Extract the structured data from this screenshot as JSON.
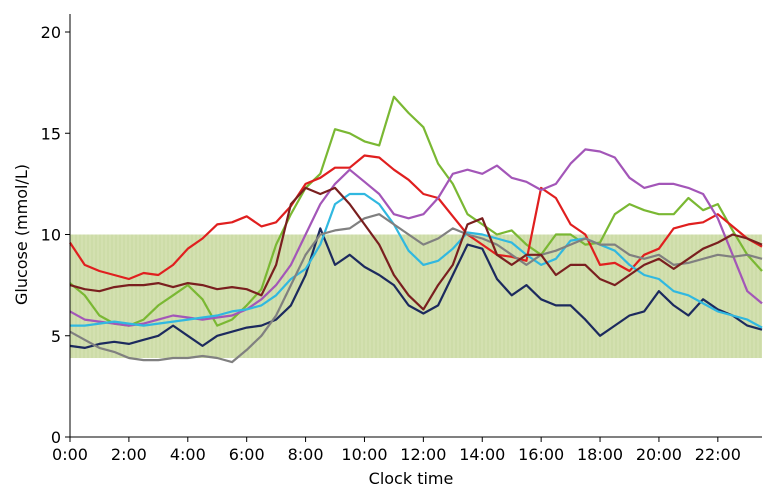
{
  "chart_data": {
    "type": "line",
    "xlabel": "Clock time",
    "ylabel": "Glucose (mmol/L)",
    "xlim": [
      0,
      23.5
    ],
    "ylim": [
      0,
      20
    ],
    "x_ticks": [
      {
        "value": 0,
        "label": "0:00"
      },
      {
        "value": 2,
        "label": "2:00"
      },
      {
        "value": 4,
        "label": "4:00"
      },
      {
        "value": 6,
        "label": "6:00"
      },
      {
        "value": 8,
        "label": "8:00"
      },
      {
        "value": 10,
        "label": "10:00"
      },
      {
        "value": 12,
        "label": "12:00"
      },
      {
        "value": 14,
        "label": "14:00"
      },
      {
        "value": 16,
        "label": "16:00"
      },
      {
        "value": 18,
        "label": "18:00"
      },
      {
        "value": 20,
        "label": "20:00"
      },
      {
        "value": 22,
        "label": "22:00"
      }
    ],
    "y_ticks": [
      {
        "value": 0,
        "label": "0"
      },
      {
        "value": 5,
        "label": "5"
      },
      {
        "value": 10,
        "label": "10"
      },
      {
        "value": 15,
        "label": "15"
      },
      {
        "value": 20,
        "label": "20"
      }
    ],
    "target_band": {
      "low": 3.9,
      "high": 10.0,
      "color": "#d3e0b0"
    },
    "series": [
      {
        "color": "#7ab833",
        "x": [
          0,
          0.5,
          1,
          1.5,
          2,
          2.5,
          3,
          3.5,
          4,
          4.5,
          5,
          5.5,
          6,
          6.5,
          7,
          7.5,
          8,
          8.5,
          9,
          9.5,
          10,
          10.5,
          11,
          11.5,
          12,
          12.5,
          13,
          13.5,
          14,
          14.5,
          15,
          15.5,
          16,
          16.5,
          17,
          17.5,
          18,
          18.5,
          19,
          19.5,
          20,
          20.5,
          21,
          21.5,
          22,
          22.5,
          23,
          23.5
        ],
        "y": [
          7.6,
          7.0,
          6.0,
          5.6,
          5.5,
          5.8,
          6.5,
          7.0,
          7.5,
          6.8,
          5.5,
          5.8,
          6.5,
          7.3,
          9.5,
          11.0,
          12.3,
          13.0,
          15.2,
          15.0,
          14.6,
          14.4,
          16.8,
          16.0,
          15.3,
          13.5,
          12.5,
          11.0,
          10.5,
          10.0,
          10.2,
          9.5,
          9.0,
          10.0,
          10.0,
          9.5,
          9.6,
          11.0,
          11.5,
          11.2,
          11.0,
          11.0,
          11.8,
          11.2,
          11.5,
          10.2,
          9.0,
          8.2
        ]
      },
      {
        "color": "#e01f1f",
        "x": [
          0,
          0.5,
          1,
          1.5,
          2,
          2.5,
          3,
          3.5,
          4,
          4.5,
          5,
          5.5,
          6,
          6.5,
          7,
          7.5,
          8,
          8.5,
          9,
          9.5,
          10,
          10.5,
          11,
          11.5,
          12,
          12.5,
          13,
          13.5,
          14,
          14.5,
          15,
          15.5,
          16,
          16.5,
          17,
          17.5,
          18,
          18.5,
          19,
          19.5,
          20,
          20.5,
          21,
          21.5,
          22,
          22.5,
          23,
          23.5
        ],
        "y": [
          9.6,
          8.5,
          8.2,
          8.0,
          7.8,
          8.1,
          8.0,
          8.5,
          9.3,
          9.8,
          10.5,
          10.6,
          10.9,
          10.4,
          10.6,
          11.4,
          12.5,
          12.8,
          13.3,
          13.3,
          13.9,
          13.8,
          13.2,
          12.7,
          12.0,
          11.8,
          10.9,
          10.0,
          9.5,
          9.0,
          8.9,
          8.7,
          12.3,
          11.8,
          10.5,
          10.0,
          8.5,
          8.6,
          8.2,
          9.0,
          9.3,
          10.3,
          10.5,
          10.6,
          11.0,
          10.4,
          9.8,
          9.4
        ]
      },
      {
        "color": "#a356b8",
        "x": [
          0,
          0.5,
          1,
          1.5,
          2,
          2.5,
          3,
          3.5,
          4,
          4.5,
          5,
          5.5,
          6,
          6.5,
          7,
          7.5,
          8,
          8.5,
          9,
          9.5,
          10,
          10.5,
          11,
          11.5,
          12,
          12.5,
          13,
          13.5,
          14,
          14.5,
          15,
          15.5,
          16,
          16.5,
          17,
          17.5,
          18,
          18.5,
          19,
          19.5,
          20,
          20.5,
          21,
          21.5,
          22,
          22.5,
          23,
          23.5
        ],
        "y": [
          6.2,
          5.8,
          5.7,
          5.6,
          5.5,
          5.6,
          5.8,
          6.0,
          5.9,
          5.8,
          5.9,
          6.0,
          6.3,
          6.8,
          7.5,
          8.5,
          10.0,
          11.5,
          12.5,
          13.2,
          12.6,
          12.0,
          11.0,
          10.8,
          11.0,
          11.8,
          13.0,
          13.2,
          13.0,
          13.4,
          12.8,
          12.6,
          12.2,
          12.5,
          13.5,
          14.2,
          14.1,
          13.8,
          12.8,
          12.3,
          12.5,
          12.5,
          12.3,
          12.0,
          10.8,
          9.0,
          7.2,
          6.6
        ]
      },
      {
        "color": "#1c2a5e",
        "x": [
          0,
          0.5,
          1,
          1.5,
          2,
          2.5,
          3,
          3.5,
          4,
          4.5,
          5,
          5.5,
          6,
          6.5,
          7,
          7.5,
          8,
          8.5,
          9,
          9.5,
          10,
          10.5,
          11,
          11.5,
          12,
          12.5,
          13,
          13.5,
          14,
          14.5,
          15,
          15.5,
          16,
          16.5,
          17,
          17.5,
          18,
          18.5,
          19,
          19.5,
          20,
          20.5,
          21,
          21.5,
          22,
          22.5,
          23,
          23.5
        ],
        "y": [
          4.5,
          4.4,
          4.6,
          4.7,
          4.6,
          4.8,
          5.0,
          5.5,
          5.0,
          4.5,
          5.0,
          5.2,
          5.4,
          5.5,
          5.8,
          6.5,
          8.0,
          10.3,
          8.5,
          9.0,
          8.4,
          8.0,
          7.5,
          6.5,
          6.1,
          6.5,
          8.0,
          9.5,
          9.3,
          7.8,
          7.0,
          7.5,
          6.8,
          6.5,
          6.5,
          5.8,
          5.0,
          5.5,
          6.0,
          6.2,
          7.2,
          6.5,
          6.0,
          6.8,
          6.3,
          6.0,
          5.5,
          5.3
        ]
      },
      {
        "color": "#30b8e0",
        "x": [
          0,
          0.5,
          1,
          1.5,
          2,
          2.5,
          3,
          3.5,
          4,
          4.5,
          5,
          5.5,
          6,
          6.5,
          7,
          7.5,
          8,
          8.5,
          9,
          9.5,
          10,
          10.5,
          11,
          11.5,
          12,
          12.5,
          13,
          13.5,
          14,
          14.5,
          15,
          15.5,
          16,
          16.5,
          17,
          17.5,
          18,
          18.5,
          19,
          19.5,
          20,
          20.5,
          21,
          21.5,
          22,
          22.5,
          23,
          23.5
        ],
        "y": [
          5.5,
          5.5,
          5.6,
          5.7,
          5.6,
          5.5,
          5.6,
          5.7,
          5.8,
          5.9,
          6.0,
          6.2,
          6.3,
          6.5,
          7.0,
          7.8,
          8.3,
          9.5,
          11.5,
          12.0,
          12.0,
          11.5,
          10.5,
          9.2,
          8.5,
          8.7,
          9.3,
          10.1,
          10.0,
          9.8,
          9.6,
          9.0,
          8.5,
          8.8,
          9.7,
          9.8,
          9.5,
          9.2,
          8.5,
          8.0,
          7.8,
          7.2,
          7.0,
          6.6,
          6.2,
          6.0,
          5.8,
          5.4
        ]
      },
      {
        "color": "#808080",
        "x": [
          0,
          0.5,
          1,
          1.5,
          2,
          2.5,
          3,
          3.5,
          4,
          4.5,
          5,
          5.5,
          6,
          6.5,
          7,
          7.5,
          8,
          8.5,
          9,
          9.5,
          10,
          10.5,
          11,
          11.5,
          12,
          12.5,
          13,
          13.5,
          14,
          14.5,
          15,
          15.5,
          16,
          16.5,
          17,
          17.5,
          18,
          18.5,
          19,
          19.5,
          20,
          20.5,
          21,
          21.5,
          22,
          22.5,
          23,
          23.5
        ],
        "y": [
          5.2,
          4.8,
          4.4,
          4.2,
          3.9,
          3.8,
          3.8,
          3.9,
          3.9,
          4.0,
          3.9,
          3.7,
          4.3,
          5.0,
          6.0,
          7.5,
          9.0,
          10.0,
          10.2,
          10.3,
          10.8,
          11.0,
          10.5,
          10.0,
          9.5,
          9.8,
          10.3,
          10.0,
          9.8,
          9.5,
          9.0,
          8.5,
          9.0,
          9.2,
          9.5,
          9.8,
          9.5,
          9.5,
          9.0,
          8.8,
          9.0,
          8.5,
          8.6,
          8.8,
          9.0,
          8.9,
          9.0,
          8.8
        ]
      },
      {
        "color": "#7a1f1f",
        "x": [
          0,
          0.5,
          1,
          1.5,
          2,
          2.5,
          3,
          3.5,
          4,
          4.5,
          5,
          5.5,
          6,
          6.5,
          7,
          7.5,
          8,
          8.5,
          9,
          9.5,
          10,
          10.5,
          11,
          11.5,
          12,
          12.5,
          13,
          13.5,
          14,
          14.5,
          15,
          15.5,
          16,
          16.5,
          17,
          17.5,
          18,
          18.5,
          19,
          19.5,
          20,
          20.5,
          21,
          21.5,
          22,
          22.5,
          23,
          23.5
        ],
        "y": [
          7.5,
          7.3,
          7.2,
          7.4,
          7.5,
          7.5,
          7.6,
          7.4,
          7.6,
          7.5,
          7.3,
          7.4,
          7.3,
          7.0,
          8.5,
          11.5,
          12.3,
          12.0,
          12.3,
          11.5,
          10.5,
          9.5,
          8.0,
          7.0,
          6.3,
          7.5,
          8.5,
          10.5,
          10.8,
          9.0,
          8.5,
          9.0,
          9.0,
          8.0,
          8.5,
          8.5,
          7.8,
          7.5,
          8.0,
          8.5,
          8.8,
          8.3,
          8.8,
          9.3,
          9.6,
          10.0,
          9.8,
          9.5
        ]
      }
    ]
  }
}
